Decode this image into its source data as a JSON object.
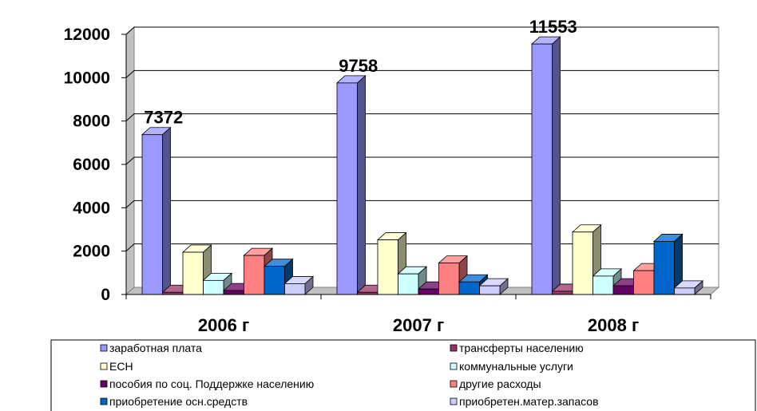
{
  "chart_data": {
    "type": "bar",
    "title": "",
    "xlabel": "",
    "ylabel": "",
    "ylim": [
      0,
      12000
    ],
    "yticks": [
      0,
      2000,
      4000,
      6000,
      8000,
      10000,
      12000
    ],
    "grid": true,
    "legend_position": "bottom",
    "categories": [
      "2006 г",
      "2007 г",
      "2008 г"
    ],
    "series": [
      {
        "name": "заработная плата",
        "color": "#9999ff",
        "values": [
          7372,
          9758,
          11553
        ],
        "labels": [
          "7372",
          "9758",
          "11553"
        ]
      },
      {
        "name": "трансферты населению",
        "color": "#993366",
        "values": [
          100,
          100,
          150
        ]
      },
      {
        "name": "ЕСН",
        "color": "#ffffcc",
        "values": [
          1950,
          2520,
          2880
        ]
      },
      {
        "name": "коммунальные услуги",
        "color": "#ccffff",
        "values": [
          650,
          950,
          850
        ]
      },
      {
        "name": "пособия по соц. Поддержке населению",
        "color": "#660066",
        "values": [
          180,
          250,
          400
        ]
      },
      {
        "name": "другие расходы",
        "color": "#ff8080",
        "values": [
          1800,
          1450,
          1100
        ]
      },
      {
        "name": "приобретение осн.средств",
        "color": "#0066cc",
        "values": [
          1300,
          580,
          2450
        ]
      },
      {
        "name": "приобретен.матер.запасов",
        "color": "#ccccff",
        "values": [
          500,
          400,
          300
        ]
      }
    ]
  }
}
